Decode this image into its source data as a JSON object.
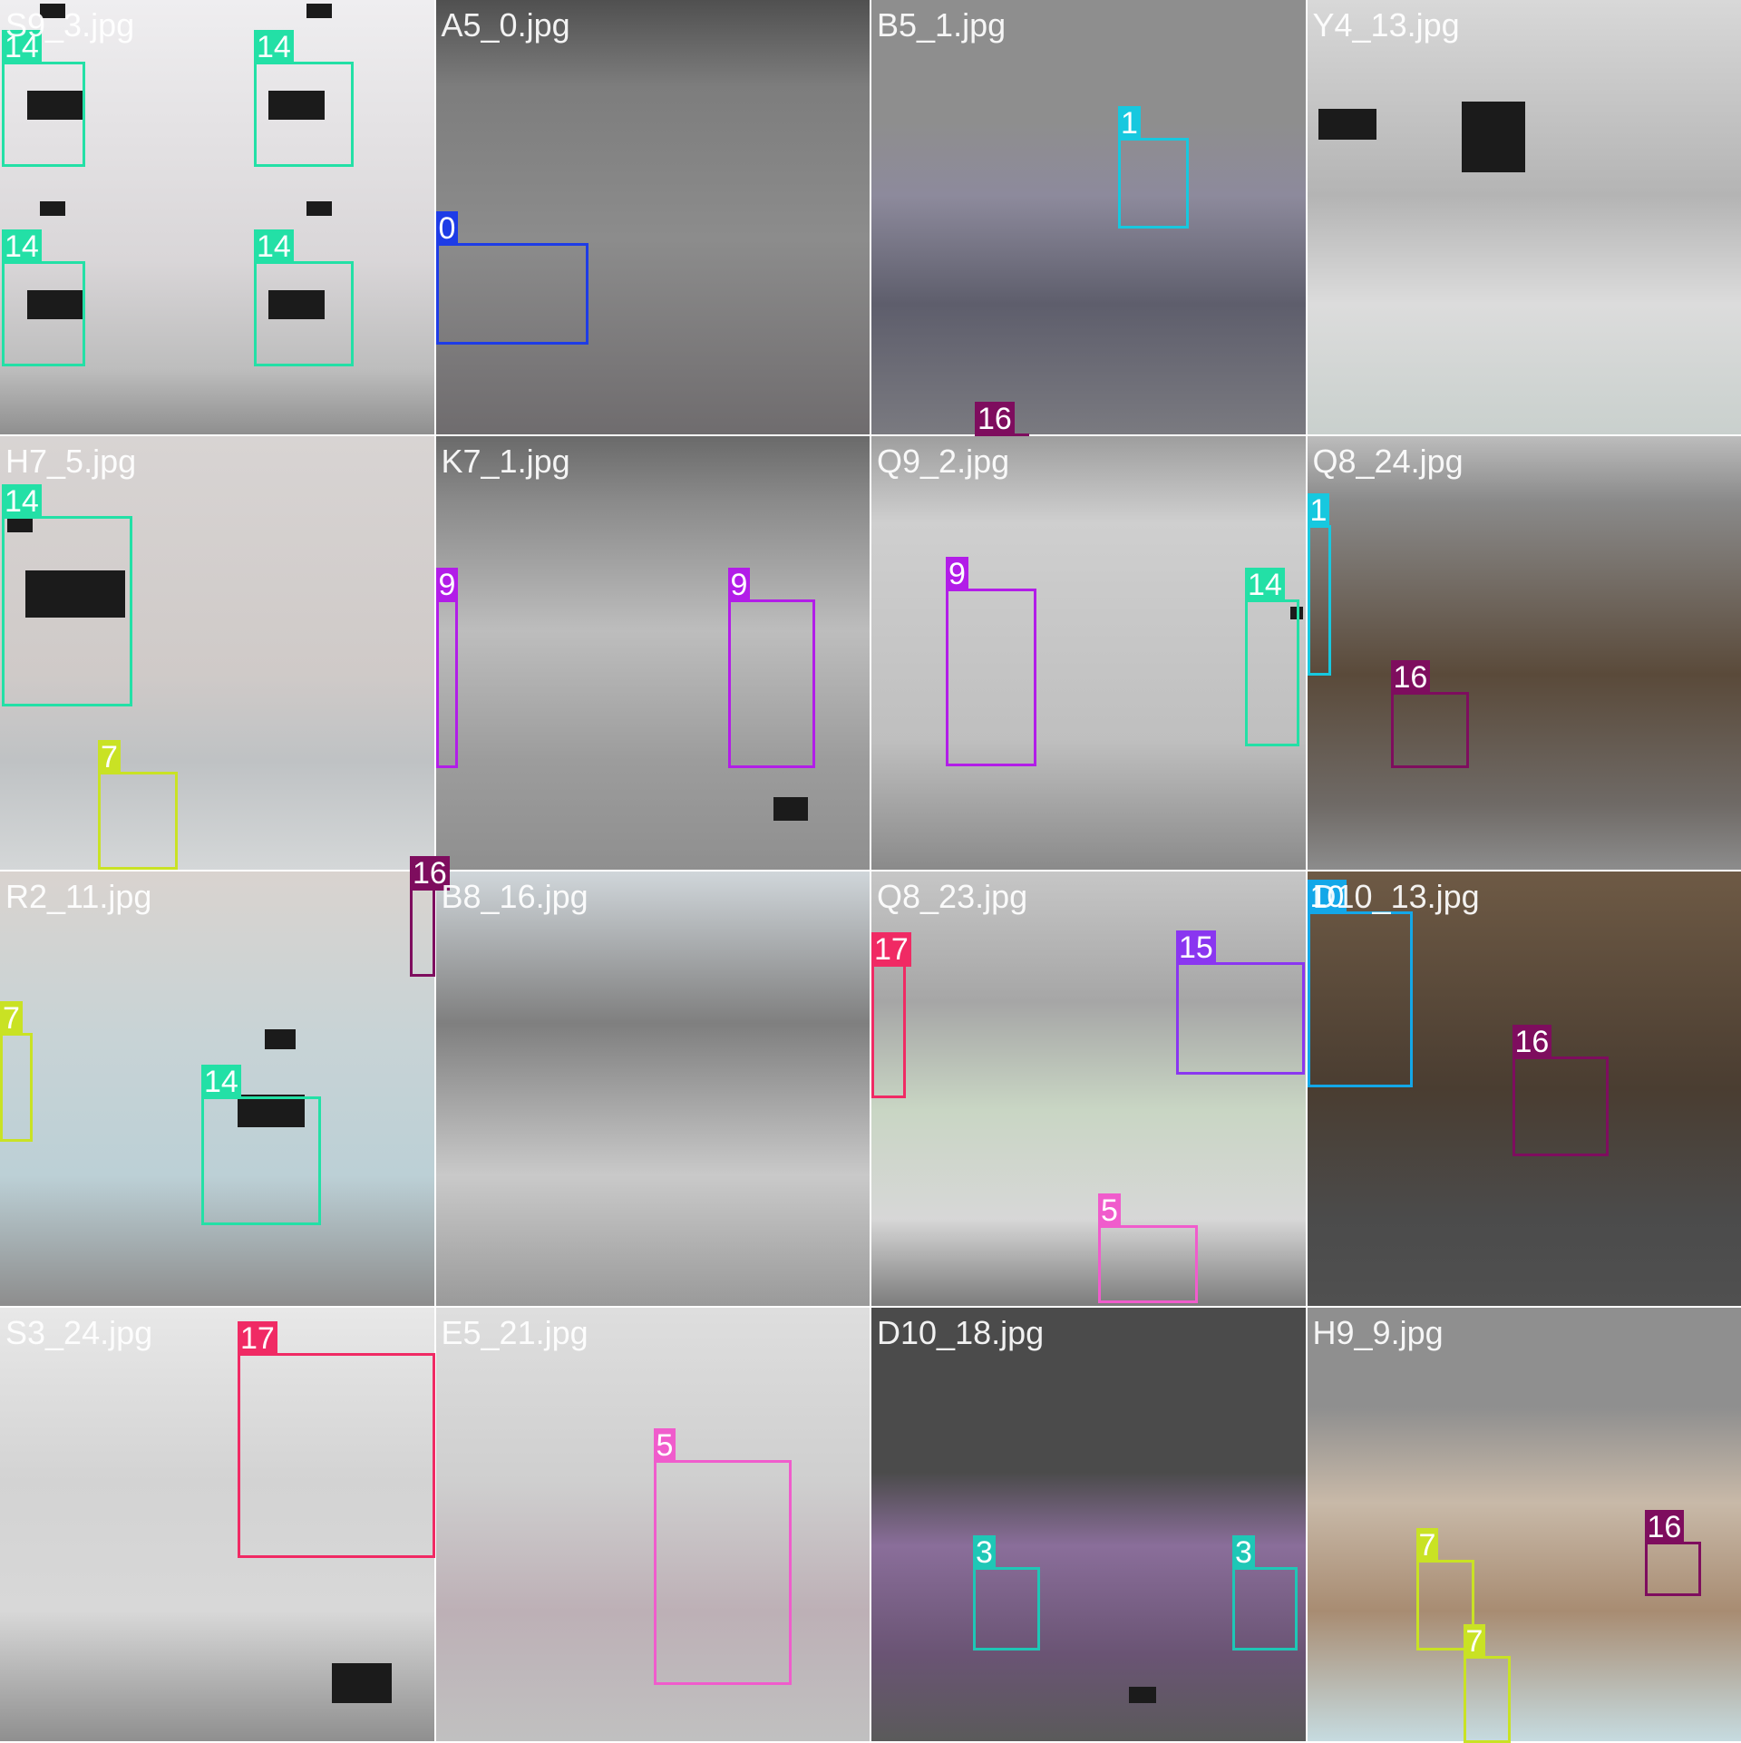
{
  "tiles": [
    {
      "filename": "S9_3.jpg",
      "background": "linear-gradient(180deg,#efeef0 0%,#d9d6d8 60%,#bdbdbd 85%,#8f8f8f 100%)",
      "boxes": [
        {
          "cls": "14",
          "color": "#23e0a6"
        },
        {
          "cls": "14",
          "color": "#23e0a6"
        },
        {
          "cls": "14",
          "color": "#23e0a6"
        },
        {
          "cls": "14",
          "color": "#23e0a6"
        }
      ]
    },
    {
      "filename": "A5_0.jpg",
      "background": "linear-gradient(180deg,#505050 0%,#7d7d7d 20%,#8c8c8c 55%,#6f6c6e 100%)",
      "boxes": [
        {
          "cls": "0",
          "color": "#1e3ce6"
        }
      ]
    },
    {
      "filename": "B5_1.jpg",
      "background": "linear-gradient(180deg,#8e8e8e 0%,#8e8e8e 28%,#8d8a9c 45%,#5e5e6c 70%,#7a7a80 100%)",
      "boxes": [
        {
          "cls": "1",
          "color": "#17c8df"
        },
        {
          "cls": "16",
          "color": "#7e0d5e"
        }
      ]
    },
    {
      "filename": "Y4_13.jpg",
      "background": "linear-gradient(180deg,#d8d8d8 0%,#b4b4b4 45%,#dcdcdc 70%,#c9d0cd 100%)",
      "boxes": []
    },
    {
      "filename": "H7_5.jpg",
      "background": "linear-gradient(180deg,#d8d4d3 0%,#cfcac8 55%,#bfc2c4 75%,#d4d7d8 100%)",
      "boxes": [
        {
          "cls": "14",
          "color": "#23e0a6"
        },
        {
          "cls": "7",
          "color": "#c9e224"
        }
      ]
    },
    {
      "filename": "K7_1.jpg",
      "background": "linear-gradient(180deg,#6a6a6a 0%,#8a8a8a 15%,#bdbdbd 45%,#9c9c9c 75%,#8f8f8f 100%)",
      "boxes": [
        {
          "cls": "9",
          "color": "#b21de8"
        },
        {
          "cls": "9",
          "color": "#b21de8"
        }
      ]
    },
    {
      "filename": "Q9_2.jpg",
      "background": "linear-gradient(180deg,#9e9e9e 0%,#cfcfcf 20%,#bfbfbf 70%,#8a8a8a 100%)",
      "boxes": [
        {
          "cls": "9",
          "color": "#b21de8"
        },
        {
          "cls": "14",
          "color": "#23e0a6"
        }
      ]
    },
    {
      "filename": "Q8_24.jpg",
      "background": "linear-gradient(180deg,#bcbcbc 0%,#8a8a8a 15%,#5a4a3a 55%,#6f6a66 85%,#8c8c8c 100%)",
      "boxes": [
        {
          "cls": "1",
          "color": "#17c8df"
        },
        {
          "cls": "16",
          "color": "#7e0d5e"
        }
      ]
    },
    {
      "filename": "R2_11.jpg",
      "background": "linear-gradient(180deg,#d9d3cf 0%,#c7d3d6 40%,#bcd0d6 70%,#8d8d8d 100%)",
      "boxes": [
        {
          "cls": "16",
          "color": "#7e0d5e"
        },
        {
          "cls": "7",
          "color": "#c9e224"
        },
        {
          "cls": "14",
          "color": "#23e0a6"
        }
      ]
    },
    {
      "filename": "B8_16.jpg",
      "background": "linear-gradient(180deg,#d0d6da 0%,#7f7f7f 35%,#c9c9c9 70%,#9a9a9a 100%)",
      "boxes": []
    },
    {
      "filename": "Q8_23.jpg",
      "background": "linear-gradient(180deg,#c6c6c6 0%,#a6a6a6 30%,#c9d6c4 55%,#d7d7d7 80%,#7c7c7c 100%)",
      "boxes": [
        {
          "cls": "17",
          "color": "#f02a64"
        },
        {
          "cls": "15",
          "color": "#8a36f0"
        },
        {
          "cls": "5",
          "color": "#f05ccc"
        }
      ]
    },
    {
      "filename": "D10_13.jpg",
      "background": "linear-gradient(180deg,#6e5a45 0%,#4a3d31 50%,#4b4b4b 80%,#505050 100%)",
      "boxes": [
        {
          "cls": "10",
          "color": "#13a7e8"
        },
        {
          "cls": "16",
          "color": "#7e0d5e"
        }
      ]
    },
    {
      "filename": "S3_24.jpg",
      "background": "linear-gradient(180deg,#e8e8e8 0%,#d3d3d3 40%,#d8d8d8 70%,#8f8f8f 100%)",
      "boxes": [
        {
          "cls": "17",
          "color": "#f02a64"
        }
      ]
    },
    {
      "filename": "E5_21.jpg",
      "background": "linear-gradient(180deg,#dedede 0%,#cfcfcf 40%,#bdb0b6 70%,#c0c0c0 100%)",
      "boxes": [
        {
          "cls": "5",
          "color": "#f05ccc"
        }
      ]
    },
    {
      "filename": "D10_18.jpg",
      "background": "linear-gradient(180deg,#4b4b4b 0%,#4b4b4b 38%,#8a6e9a 55%,#6a5474 80%,#5a5a5a 100%)",
      "boxes": [
        {
          "cls": "3",
          "color": "#1ec7b6"
        },
        {
          "cls": "3",
          "color": "#1ec7b6"
        }
      ]
    },
    {
      "filename": "H9_9.jpg",
      "background": "linear-gradient(180deg,#8f8f8f 0%,#8f8f8f 23%,#c8b9a8 45%,#a88c72 70%,#c6dbe0 100%)",
      "boxes": [
        {
          "cls": "7",
          "color": "#c9e224"
        },
        {
          "cls": "16",
          "color": "#7e0d5e"
        },
        {
          "cls": "7",
          "color": "#c9e224"
        }
      ]
    }
  ]
}
